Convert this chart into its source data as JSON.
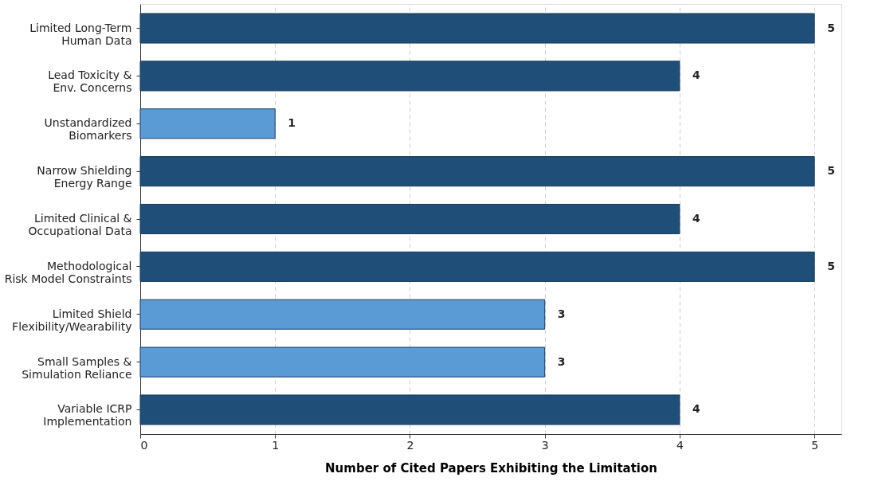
{
  "chart_data": {
    "type": "bar",
    "orientation": "horizontal",
    "xlabel": "Number of Cited Papers Exhibiting the Limitation",
    "categories": [
      "Limited Long-Term\nHuman Data",
      "Lead Toxicity &\nEnv. Concerns",
      "Unstandardized\nBiomarkers",
      "Narrow Shielding\nEnergy Range",
      "Limited Clinical &\nOccupational Data",
      "Methodological\nRisk Model Constraints",
      "Limited Shield\nFlexibility/Wearability",
      "Small Samples &\nSimulation Reliance",
      "Variable ICRP\nImplementation"
    ],
    "values": [
      5,
      4,
      1,
      5,
      4,
      5,
      3,
      3,
      4
    ],
    "colors": [
      "#1f4e79",
      "#1f4e79",
      "#5b9bd5",
      "#1f4e79",
      "#1f4e79",
      "#1f4e79",
      "#5b9bd5",
      "#5b9bd5",
      "#1f4e79"
    ],
    "xlim": [
      0,
      5.2
    ],
    "xticks": [
      0,
      1,
      2,
      3,
      4,
      5
    ],
    "grid": "x",
    "data_labels": true
  }
}
